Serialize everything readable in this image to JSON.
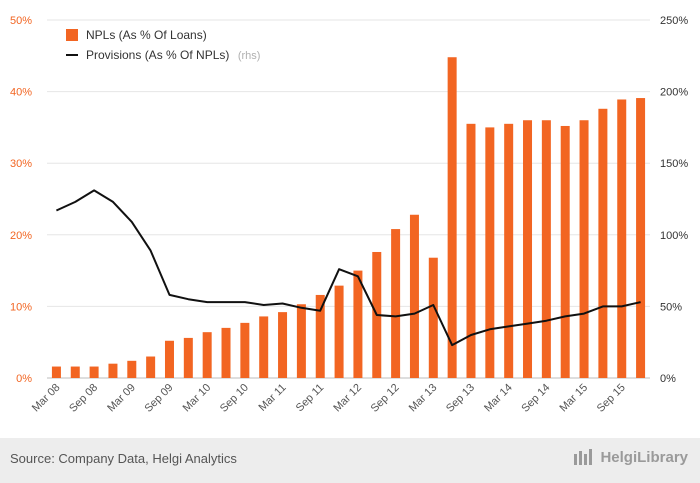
{
  "chart_data": {
    "type": "bar+line",
    "categories": [
      "Mar 08",
      "Jun 08",
      "Sep 08",
      "Dec 08",
      "Mar 09",
      "Jun 09",
      "Sep 09",
      "Dec 09",
      "Mar 10",
      "Jun 10",
      "Sep 10",
      "Dec 10",
      "Mar 11",
      "Jun 11",
      "Sep 11",
      "Dec 11",
      "Mar 12",
      "Jun 12",
      "Sep 12",
      "Dec 12",
      "Mar 13",
      "Jun 13",
      "Sep 13",
      "Dec 13",
      "Mar 14",
      "Jun 14",
      "Sep 14",
      "Dec 14",
      "Mar 15",
      "Jun 15",
      "Sep 15",
      "Dec 15"
    ],
    "x_tick_labels": [
      "Mar 08",
      "Sep 08",
      "Mar 09",
      "Sep 09",
      "Mar 10",
      "Sep 10",
      "Mar 11",
      "Sep 11",
      "Mar 12",
      "Sep 12",
      "Mar 13",
      "Sep 13",
      "Mar 14",
      "Sep 14",
      "Mar 15",
      "Sep 15"
    ],
    "series": [
      {
        "name": "NPLs (As % Of Loans)",
        "type": "bar",
        "axis": "left",
        "color": "#f26522",
        "values": [
          1.6,
          1.6,
          1.6,
          2.0,
          2.4,
          3.0,
          5.2,
          5.6,
          6.4,
          7.0,
          7.7,
          8.6,
          9.2,
          10.3,
          11.6,
          12.9,
          15.0,
          17.6,
          20.8,
          22.8,
          16.8,
          44.8,
          35.5,
          35.0,
          35.5,
          36.0,
          36.0,
          35.2,
          36.0,
          37.6,
          38.9,
          39.1
        ]
      },
      {
        "name": "Provisions (As % Of NPLs)",
        "suffix": "(rhs)",
        "type": "line",
        "axis": "right",
        "color": "#111111",
        "values": [
          117,
          123,
          131,
          123,
          109,
          89,
          58,
          55,
          53,
          53,
          53,
          51,
          52,
          49,
          47,
          76,
          71,
          44,
          43,
          45,
          51,
          23,
          30,
          34,
          36,
          38,
          40,
          43,
          45,
          50,
          50,
          53
        ]
      }
    ],
    "y_left": {
      "ticks": [
        "0%",
        "10%",
        "20%",
        "30%",
        "40%",
        "50%"
      ],
      "range": [
        0,
        50
      ]
    },
    "y_right": {
      "ticks": [
        "0%",
        "50%",
        "100%",
        "150%",
        "200%",
        "250%"
      ],
      "range": [
        0,
        250
      ]
    },
    "grid": true,
    "legend_position": "top-left"
  },
  "footer": {
    "source": "Source: Company Data, Helgi Analytics",
    "brand": "HelgiLibrary"
  }
}
